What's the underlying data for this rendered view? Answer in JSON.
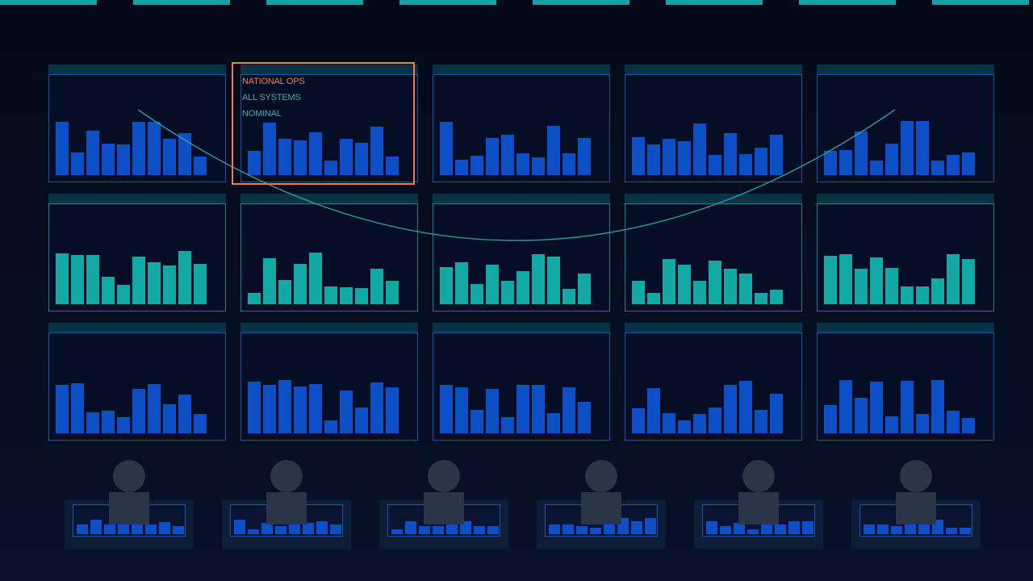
{
  "colors": {
    "background": "#050b1c",
    "accent_teal": "#12a4a4",
    "bar_blue": "#0c4fc6",
    "bar_teal": "#12a8a4",
    "highlight": "#f07a58",
    "operator": "#2a3548"
  },
  "top_stripes": 8,
  "highlight_labels": [
    "NATIONAL OPS",
    "ALL SYSTEMS",
    "NOMINAL"
  ],
  "video_wall": {
    "rows": [
      {
        "color": "blue",
        "panels": [
          [
            0.78,
            0.33,
            0.66,
            0.46,
            0.45,
            0.78,
            0.79,
            0.53,
            0.62,
            0.27
          ],
          [
            0.36,
            0.77,
            0.54,
            0.51,
            0.63,
            0.21,
            0.54,
            0.48,
            0.71,
            0.27
          ],
          [
            0.78,
            0.23,
            0.29,
            0.55,
            0.6,
            0.32,
            0.26,
            0.73,
            0.32,
            0.55
          ],
          [
            0.56,
            0.45,
            0.54,
            0.5,
            0.76,
            0.3,
            0.62,
            0.31,
            0.41,
            0.6
          ],
          [
            0.36,
            0.37,
            0.64,
            0.21,
            0.46,
            0.8,
            0.8,
            0.21,
            0.3,
            0.33
          ]
        ]
      },
      {
        "color": "teal",
        "panels": [
          [
            0.75,
            0.73,
            0.73,
            0.41,
            0.28,
            0.7,
            0.62,
            0.57,
            0.79,
            0.59
          ],
          [
            0.17,
            0.68,
            0.36,
            0.59,
            0.76,
            0.26,
            0.25,
            0.24,
            0.52,
            0.35
          ],
          [
            0.55,
            0.62,
            0.3,
            0.58,
            0.34,
            0.49,
            0.74,
            0.7,
            0.23,
            0.45
          ],
          [
            0.35,
            0.17,
            0.67,
            0.58,
            0.34,
            0.64,
            0.52,
            0.45,
            0.17,
            0.21
          ],
          [
            0.72,
            0.74,
            0.52,
            0.69,
            0.54,
            0.26,
            0.26,
            0.38,
            0.74,
            0.67
          ]
        ]
      },
      {
        "color": "blue",
        "panels": [
          [
            0.72,
            0.74,
            0.31,
            0.33,
            0.24,
            0.66,
            0.73,
            0.43,
            0.57,
            0.28
          ],
          [
            0.76,
            0.72,
            0.79,
            0.69,
            0.73,
            0.19,
            0.63,
            0.38,
            0.75,
            0.68
          ],
          [
            0.72,
            0.68,
            0.35,
            0.66,
            0.24,
            0.72,
            0.72,
            0.3,
            0.68,
            0.46
          ],
          [
            0.37,
            0.67,
            0.3,
            0.19,
            0.29,
            0.38,
            0.71,
            0.77,
            0.34,
            0.58
          ],
          [
            0.42,
            0.78,
            0.52,
            0.76,
            0.25,
            0.77,
            0.28,
            0.78,
            0.33,
            0.23
          ]
        ]
      }
    ]
  },
  "operator_stations": [
    [
      0.55,
      0.82,
      0.55,
      0.55,
      0.55,
      0.55,
      0.68,
      0.45
    ],
    [
      0.82,
      0.27,
      0.64,
      0.45,
      0.55,
      0.64,
      0.73,
      0.55
    ],
    [
      0.27,
      0.73,
      0.45,
      0.45,
      0.55,
      0.73,
      0.45,
      0.45
    ],
    [
      0.55,
      0.55,
      0.45,
      0.36,
      0.55,
      0.91,
      0.73,
      0.91
    ],
    [
      0.73,
      0.45,
      0.64,
      0.27,
      0.55,
      0.55,
      0.73,
      0.73
    ],
    [
      0.55,
      0.55,
      0.45,
      0.55,
      0.55,
      0.82,
      0.36,
      0.36
    ]
  ]
}
